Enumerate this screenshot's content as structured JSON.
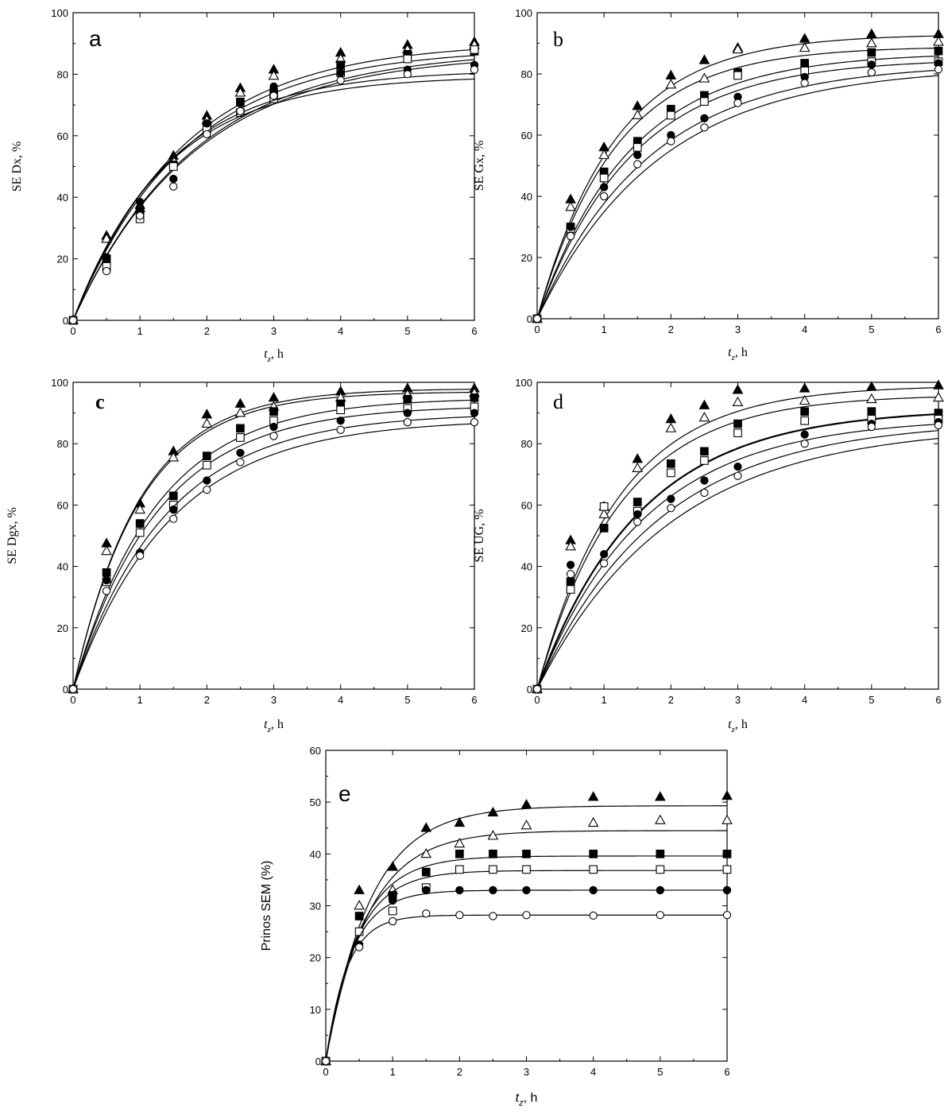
{
  "chart_data": [
    {
      "panel": "a",
      "type": "scatter",
      "label": "a",
      "xlabel": "t",
      "xlabel_sub": "z",
      "xlabel_unit": ", h",
      "ylabel": "SE Dx, %",
      "xlim": [
        0,
        6
      ],
      "ylim": [
        0,
        100
      ],
      "xticks": [
        0,
        1,
        2,
        3,
        4,
        5,
        6
      ],
      "yticks": [
        0,
        20,
        40,
        60,
        80,
        100
      ],
      "x": [
        0,
        0.5,
        1,
        1.5,
        2,
        2.5,
        3,
        4,
        5,
        6
      ],
      "series": [
        {
          "marker": "triangle-filled",
          "values": [
            0,
            27.5,
            37.5,
            53.5,
            66.5,
            75.5,
            81.5,
            87,
            89.5,
            90.5
          ],
          "fit": {
            "a": 90.5,
            "k": 0.6
          }
        },
        {
          "marker": "triangle-open",
          "values": [
            0,
            26.5,
            36.5,
            52,
            65,
            74,
            79.5,
            85,
            88,
            89.5
          ],
          "fit": {
            "a": 88.5,
            "k": 0.6
          }
        },
        {
          "marker": "square-filled",
          "values": [
            0,
            20,
            35.5,
            50.5,
            63.5,
            71,
            74,
            83,
            86.5,
            87.5
          ],
          "fit": {
            "a": 88,
            "k": 0.55
          }
        },
        {
          "marker": "square-open",
          "values": [
            0,
            17.5,
            33,
            50,
            62,
            67.5,
            72,
            80.5,
            85,
            88
          ],
          "fit": {
            "a": 87,
            "k": 0.55
          }
        },
        {
          "marker": "circle-filled",
          "values": [
            0,
            20.5,
            38.5,
            46,
            64,
            70.5,
            76,
            80.5,
            81.5,
            83
          ],
          "fit": {
            "a": 81.5,
            "k": 0.7
          }
        },
        {
          "marker": "circle-open",
          "values": [
            0,
            16,
            34,
            43.5,
            60.5,
            68,
            73,
            78,
            80,
            81.5
          ],
          "fit": {
            "a": 79.5,
            "k": 0.72
          }
        }
      ]
    },
    {
      "panel": "b",
      "type": "scatter",
      "label": "b",
      "xlabel": "t",
      "xlabel_sub": "z",
      "xlabel_unit": ", h",
      "ylabel": "SE Gx, %",
      "xlim": [
        0,
        6
      ],
      "ylim": [
        0,
        100
      ],
      "xticks": [
        0,
        1,
        2,
        3,
        4,
        5,
        6
      ],
      "yticks": [
        0,
        20,
        40,
        60,
        80,
        100
      ],
      "x": [
        0,
        0.5,
        1,
        1.5,
        2,
        2.5,
        3,
        4,
        5,
        6
      ],
      "series": [
        {
          "marker": "triangle-filled",
          "values": [
            0,
            39,
            56,
            69.5,
            79.5,
            84.5,
            88.5,
            91.5,
            93,
            93
          ],
          "fit": {
            "a": 93,
            "k": 0.85
          }
        },
        {
          "marker": "triangle-open",
          "values": [
            0,
            36.5,
            53.5,
            66.5,
            76.5,
            78.5,
            88,
            88.5,
            90,
            90.5
          ],
          "fit": {
            "a": 89,
            "k": 0.85
          }
        },
        {
          "marker": "square-filled",
          "values": [
            0,
            30,
            48,
            58,
            68.5,
            73,
            80.5,
            83.5,
            87,
            87.5
          ],
          "fit": {
            "a": 87,
            "k": 0.72
          }
        },
        {
          "marker": "square-open",
          "values": [
            0,
            29.5,
            46,
            56,
            66.5,
            71,
            79.5,
            81,
            84,
            84
          ],
          "fit": {
            "a": 85,
            "k": 0.7
          }
        },
        {
          "marker": "circle-filled",
          "values": [
            0,
            30,
            43,
            53.5,
            60,
            65.5,
            72.5,
            79,
            83,
            83.5
          ],
          "fit": {
            "a": 83.5,
            "k": 0.6
          }
        },
        {
          "marker": "circle-open",
          "values": [
            0,
            27,
            40,
            50.5,
            58,
            62.5,
            70.5,
            77,
            80.5,
            81.5
          ],
          "fit": {
            "a": 82.5,
            "k": 0.55
          }
        }
      ]
    },
    {
      "panel": "c",
      "type": "scatter",
      "label": "c",
      "xlabel": "t",
      "xlabel_sub": "z",
      "xlabel_unit": ", h",
      "ylabel": "SE Dgx, %",
      "xlim": [
        0,
        6
      ],
      "ylim": [
        0,
        100
      ],
      "xticks": [
        0,
        1,
        2,
        3,
        4,
        5,
        6
      ],
      "yticks": [
        0,
        20,
        40,
        60,
        80,
        100
      ],
      "x": [
        0,
        0.5,
        1,
        1.5,
        2,
        2.5,
        3,
        4,
        5,
        6
      ],
      "series": [
        {
          "marker": "triangle-filled",
          "values": [
            0,
            47.5,
            60.5,
            77.5,
            89.5,
            93,
            95,
            97,
            98,
            98
          ],
          "fit": {
            "a": 98,
            "k": 1.0
          }
        },
        {
          "marker": "triangle-open",
          "values": [
            0,
            45,
            58.5,
            75.5,
            86.5,
            90,
            92,
            95,
            96,
            96.5
          ],
          "fit": {
            "a": 97,
            "k": 1.0
          }
        },
        {
          "marker": "square-filled",
          "values": [
            0,
            38,
            54,
            63,
            76,
            85,
            90.5,
            93,
            94.5,
            95
          ],
          "fit": {
            "a": 95,
            "k": 0.8
          }
        },
        {
          "marker": "square-open",
          "values": [
            0,
            35,
            51,
            60,
            73,
            82,
            87.5,
            91,
            91.5,
            92
          ],
          "fit": {
            "a": 92.5,
            "k": 0.78
          }
        },
        {
          "marker": "circle-filled",
          "values": [
            0,
            35.5,
            44.5,
            58.5,
            68,
            77,
            85.5,
            87.5,
            90,
            90
          ],
          "fit": {
            "a": 90,
            "k": 0.72
          }
        },
        {
          "marker": "circle-open",
          "values": [
            0,
            32,
            43.5,
            55.5,
            65,
            74,
            82.5,
            84.5,
            87,
            87
          ],
          "fit": {
            "a": 88,
            "k": 0.68
          }
        }
      ]
    },
    {
      "panel": "d",
      "type": "scatter",
      "label": "d",
      "xlabel": "t",
      "xlabel_sub": "z",
      "xlabel_unit": ", h",
      "ylabel": "SE UG, %",
      "xlim": [
        0,
        6
      ],
      "ylim": [
        0,
        100
      ],
      "xticks": [
        0,
        1,
        2,
        3,
        4,
        5,
        6
      ],
      "yticks": [
        0,
        20,
        40,
        60,
        80,
        100
      ],
      "x": [
        0,
        0.5,
        1,
        1.5,
        2,
        2.5,
        3,
        4,
        5,
        6
      ],
      "series": [
        {
          "marker": "triangle-filled",
          "values": [
            0,
            48.5,
            59.5,
            75,
            88,
            92.5,
            97.5,
            98,
            98.5,
            99
          ],
          "fit": {
            "a": 99,
            "k": 0.82
          }
        },
        {
          "marker": "triangle-open",
          "values": [
            0,
            46.5,
            57,
            72,
            85,
            88.5,
            93.5,
            94,
            94.5,
            95
          ],
          "fit": {
            "a": 96,
            "k": 0.8
          }
        },
        {
          "marker": "square-filled",
          "values": [
            0,
            35,
            52.5,
            61,
            73.5,
            77.5,
            86.5,
            90.5,
            90.5,
            90
          ],
          "fit": {
            "a": 91.5,
            "k": 0.65
          },
          "thick": true
        },
        {
          "marker": "square-open",
          "values": [
            0,
            32.5,
            59.5,
            58,
            70.5,
            74.5,
            83.5,
            87.5,
            88,
            88
          ],
          "fit": {
            "a": 88.5,
            "k": 0.62
          }
        },
        {
          "marker": "circle-filled",
          "values": [
            0,
            40.5,
            44,
            57,
            62,
            68,
            72.5,
            83,
            86.5,
            87
          ],
          "fit": {
            "a": 87.5,
            "k": 0.55
          }
        },
        {
          "marker": "circle-open",
          "values": [
            0,
            37.5,
            41,
            54.5,
            59,
            64,
            69.5,
            80,
            85.5,
            86
          ],
          "fit": {
            "a": 86,
            "k": 0.5
          }
        }
      ]
    },
    {
      "panel": "e",
      "type": "scatter",
      "label": "e",
      "xlabel": "t",
      "xlabel_sub": "z",
      "xlabel_unit": ", h",
      "ylabel": "Prinos SEM (%)",
      "xlim": [
        0,
        6
      ],
      "ylim": [
        0,
        60
      ],
      "xticks": [
        0,
        1,
        2,
        3,
        4,
        5,
        6
      ],
      "yticks": [
        0,
        10,
        20,
        30,
        40,
        50,
        60
      ],
      "x": [
        0,
        0.5,
        1,
        1.5,
        2,
        2.5,
        3,
        4,
        5,
        6
      ],
      "series": [
        {
          "marker": "triangle-filled",
          "values": [
            0,
            33,
            37.5,
            45,
            46,
            48,
            49.5,
            51,
            51,
            51.2
          ],
          "fit": {
            "a": 49.3,
            "k": 1.5
          }
        },
        {
          "marker": "triangle-open",
          "values": [
            0,
            30,
            33,
            40,
            42,
            43.5,
            45.5,
            46,
            46.5,
            46.5
          ],
          "fit": {
            "a": 44.5,
            "k": 1.6
          }
        },
        {
          "marker": "square-filled",
          "values": [
            0,
            28,
            32,
            36.5,
            40,
            40,
            40,
            40,
            40,
            40
          ],
          "fit": {
            "a": 39.6,
            "k": 2.0
          }
        },
        {
          "marker": "square-open",
          "values": [
            0,
            25,
            29,
            33.5,
            37,
            37,
            37,
            37,
            37,
            37
          ],
          "fit": {
            "a": 36.8,
            "k": 2.2
          }
        },
        {
          "marker": "circle-filled",
          "values": [
            0,
            22.5,
            31,
            33,
            33,
            33,
            33,
            33,
            33,
            33
          ],
          "fit": {
            "a": 33,
            "k": 2.6
          }
        },
        {
          "marker": "circle-open",
          "values": [
            0,
            22,
            27,
            28.5,
            28.2,
            28,
            28.2,
            28.1,
            28.2,
            28.2
          ],
          "fit": {
            "a": 28.2,
            "k": 3.2
          }
        }
      ]
    }
  ]
}
